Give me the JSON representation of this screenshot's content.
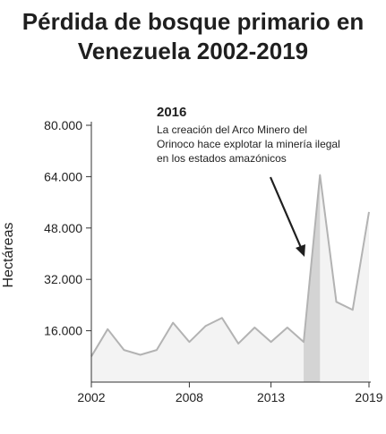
{
  "chart_data": {
    "type": "area",
    "title_lines": [
      "Pérdida de bosque primario en",
      "Venezuela 2002-2019"
    ],
    "xlabel": "",
    "ylabel": "Hectáreas",
    "x": [
      2002,
      2003,
      2004,
      2005,
      2006,
      2007,
      2008,
      2009,
      2010,
      2011,
      2012,
      2013,
      2014,
      2015,
      2016,
      2017,
      2018,
      2019
    ],
    "values": [
      8000,
      16500,
      10000,
      8500,
      10000,
      18500,
      12500,
      17500,
      20000,
      12000,
      17000,
      12500,
      17000,
      12500,
      64500,
      25000,
      22500,
      53000
    ],
    "xlim": [
      2002,
      2019
    ],
    "ylim": [
      0,
      80000
    ],
    "x_ticks": [
      2002,
      2008,
      2013,
      2019
    ],
    "x_tick_labels": [
      "2002",
      "2008",
      "2013",
      "2019"
    ],
    "y_ticks": [
      16000,
      32000,
      48000,
      64000,
      80000
    ],
    "y_tick_labels": [
      "16.000",
      "32.000",
      "48.000",
      "64.000",
      "80.000"
    ],
    "highlight_range": [
      2015,
      2016
    ],
    "grid": false,
    "legend": "none",
    "annotation": {
      "title": "2016",
      "lines": [
        "La creación del Arco Minero del",
        "Orinoco hace explotar la minería ilegal",
        "en los estados amazónicos"
      ]
    },
    "colors": {
      "line": "#b3b3b3",
      "fill": "#f3f3f3",
      "highlight": "#d4d4d4",
      "axis": "#333333",
      "arrow": "#1f1f1f"
    }
  }
}
